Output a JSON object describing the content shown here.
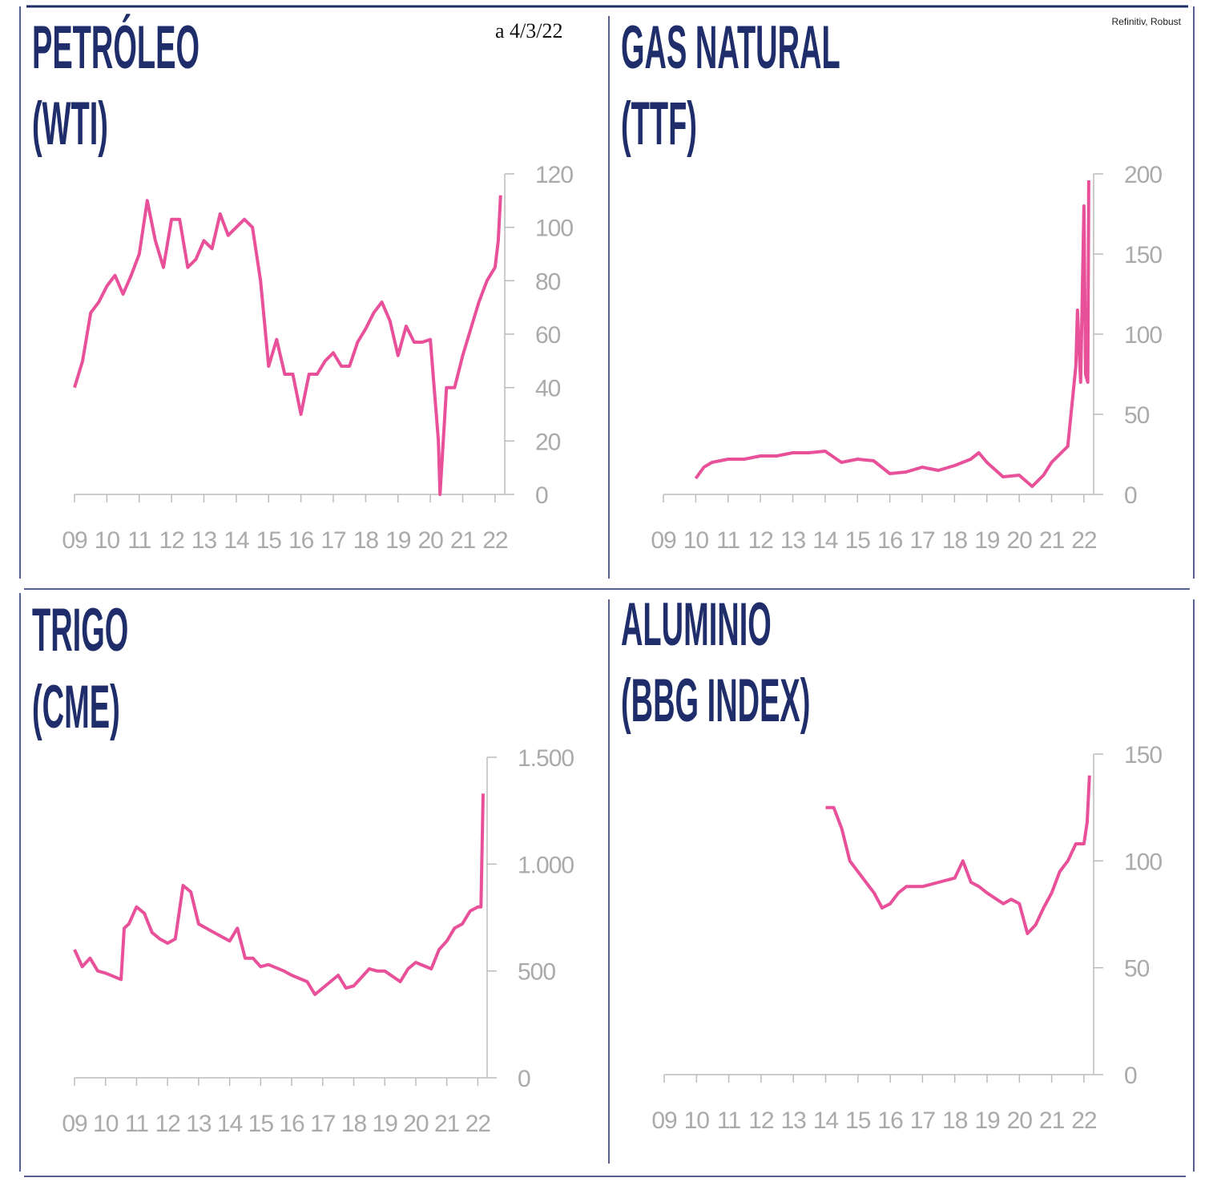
{
  "date_note": "a 4/3/22",
  "source": "Refinitiv, Robust",
  "chart_data": [
    {
      "type": "line",
      "title": "PETRÓLEO",
      "subtitle": "(WTI)",
      "color": "#e8509a",
      "xlim": [
        2009,
        2022.3
      ],
      "ylim": [
        0,
        120
      ],
      "yticks": [
        0,
        20,
        40,
        60,
        80,
        100,
        120
      ],
      "xticks": [
        {
          "value": 2009,
          "label": "09"
        },
        {
          "value": 2010,
          "label": "10"
        },
        {
          "value": 2011,
          "label": "11"
        },
        {
          "value": 2012,
          "label": "12"
        },
        {
          "value": 2013,
          "label": "13"
        },
        {
          "value": 2014,
          "label": "14"
        },
        {
          "value": 2015,
          "label": "15"
        },
        {
          "value": 2016,
          "label": "16"
        },
        {
          "value": 2017,
          "label": "17"
        },
        {
          "value": 2018,
          "label": "18"
        },
        {
          "value": 2019,
          "label": "19"
        },
        {
          "value": 2020,
          "label": "20"
        },
        {
          "value": 2021,
          "label": "21"
        },
        {
          "value": 2022,
          "label": "22"
        }
      ],
      "x": [
        2009,
        2009.25,
        2009.5,
        2009.75,
        2010,
        2010.25,
        2010.5,
        2010.75,
        2011,
        2011.25,
        2011.5,
        2011.75,
        2012,
        2012.25,
        2012.5,
        2012.75,
        2013,
        2013.25,
        2013.5,
        2013.75,
        2014,
        2014.25,
        2014.5,
        2014.75,
        2015,
        2015.25,
        2015.5,
        2015.75,
        2016,
        2016.25,
        2016.5,
        2016.75,
        2017,
        2017.25,
        2017.5,
        2017.75,
        2018,
        2018.25,
        2018.5,
        2018.75,
        2019,
        2019.25,
        2019.5,
        2019.75,
        2020,
        2020.25,
        2020.3,
        2020.5,
        2020.75,
        2021,
        2021.25,
        2021.5,
        2021.75,
        2022,
        2022.1,
        2022.17
      ],
      "values": [
        40,
        50,
        68,
        72,
        78,
        82,
        75,
        82,
        90,
        110,
        95,
        85,
        103,
        103,
        85,
        88,
        95,
        92,
        105,
        97,
        100,
        103,
        100,
        80,
        48,
        58,
        45,
        45,
        30,
        45,
        45,
        50,
        53,
        48,
        48,
        57,
        62,
        68,
        72,
        65,
        52,
        63,
        57,
        57,
        58,
        20,
        0,
        40,
        40,
        52,
        62,
        72,
        80,
        85,
        95,
        112
      ]
    },
    {
      "type": "line",
      "title": "GAS NATURAL",
      "subtitle": "(TTF)",
      "color": "#e8509a",
      "xlim": [
        2009,
        2022.3
      ],
      "ylim": [
        0,
        200
      ],
      "yticks": [
        0,
        50,
        100,
        150,
        200
      ],
      "xticks": [
        {
          "value": 2009,
          "label": "09"
        },
        {
          "value": 2010,
          "label": "10"
        },
        {
          "value": 2011,
          "label": "11"
        },
        {
          "value": 2012,
          "label": "12"
        },
        {
          "value": 2013,
          "label": "13"
        },
        {
          "value": 2014,
          "label": "14"
        },
        {
          "value": 2015,
          "label": "15"
        },
        {
          "value": 2016,
          "label": "16"
        },
        {
          "value": 2017,
          "label": "17"
        },
        {
          "value": 2018,
          "label": "18"
        },
        {
          "value": 2019,
          "label": "19"
        },
        {
          "value": 2020,
          "label": "20"
        },
        {
          "value": 2021,
          "label": "21"
        },
        {
          "value": 2022,
          "label": "22"
        }
      ],
      "x": [
        2010,
        2010.25,
        2010.5,
        2011,
        2011.5,
        2012,
        2012.5,
        2013,
        2013.5,
        2014,
        2014.5,
        2015,
        2015.5,
        2016,
        2016.5,
        2017,
        2017.5,
        2018,
        2018.5,
        2018.75,
        2019,
        2019.5,
        2020,
        2020.4,
        2020.75,
        2021,
        2021.5,
        2021.75,
        2021.8,
        2021.9,
        2022,
        2022.05,
        2022.12,
        2022.15
      ],
      "values": [
        10,
        17,
        20,
        22,
        22,
        24,
        24,
        26,
        26,
        27,
        20,
        22,
        21,
        13,
        14,
        17,
        15,
        18,
        22,
        26,
        20,
        11,
        12,
        5,
        12,
        20,
        30,
        80,
        115,
        70,
        180,
        75,
        70,
        196
      ]
    },
    {
      "type": "line",
      "title": "TRIGO",
      "subtitle": "(CME)",
      "color": "#e8509a",
      "xlim": [
        2009,
        2022.3
      ],
      "ylim": [
        0,
        1500
      ],
      "yticks": [
        0,
        500,
        {
          "value": 1000,
          "label": "1.000"
        },
        {
          "value": 1500,
          "label": "1.500"
        }
      ],
      "xticks": [
        {
          "value": 2009,
          "label": "09"
        },
        {
          "value": 2010,
          "label": "10"
        },
        {
          "value": 2011,
          "label": "11"
        },
        {
          "value": 2012,
          "label": "12"
        },
        {
          "value": 2013,
          "label": "13"
        },
        {
          "value": 2014,
          "label": "14"
        },
        {
          "value": 2015,
          "label": "15"
        },
        {
          "value": 2016,
          "label": "16"
        },
        {
          "value": 2017,
          "label": "17"
        },
        {
          "value": 2018,
          "label": "18"
        },
        {
          "value": 2019,
          "label": "19"
        },
        {
          "value": 2020,
          "label": "20"
        },
        {
          "value": 2021,
          "label": "21"
        },
        {
          "value": 2022,
          "label": "22"
        }
      ],
      "x": [
        2009,
        2009.25,
        2009.5,
        2009.75,
        2010,
        2010.5,
        2010.6,
        2010.75,
        2011,
        2011.25,
        2011.5,
        2011.75,
        2012,
        2012.25,
        2012.5,
        2012.75,
        2013,
        2013.5,
        2014,
        2014.25,
        2014.5,
        2014.75,
        2015,
        2015.25,
        2015.75,
        2016,
        2016.5,
        2016.75,
        2017,
        2017.5,
        2017.75,
        2018,
        2018.5,
        2018.75,
        2019,
        2019.5,
        2019.75,
        2020,
        2020.5,
        2020.75,
        2021,
        2021.25,
        2021.5,
        2021.75,
        2022,
        2022.1,
        2022.17
      ],
      "values": [
        600,
        520,
        560,
        500,
        490,
        460,
        700,
        720,
        800,
        770,
        680,
        650,
        630,
        650,
        900,
        870,
        720,
        680,
        640,
        700,
        560,
        560,
        520,
        530,
        500,
        480,
        450,
        390,
        420,
        480,
        420,
        430,
        510,
        500,
        500,
        450,
        510,
        540,
        510,
        600,
        640,
        700,
        720,
        780,
        800,
        800,
        1330
      ]
    },
    {
      "type": "line",
      "title": "ALUMINIO",
      "subtitle": "(BBG INDEX)",
      "color": "#e8509a",
      "xlim": [
        2009,
        2022.3
      ],
      "ylim": [
        0,
        150
      ],
      "yticks": [
        0,
        50,
        100,
        150
      ],
      "xticks": [
        {
          "value": 2009,
          "label": "09"
        },
        {
          "value": 2010,
          "label": "10"
        },
        {
          "value": 2011,
          "label": "11"
        },
        {
          "value": 2012,
          "label": "12"
        },
        {
          "value": 2013,
          "label": "13"
        },
        {
          "value": 2014,
          "label": "14"
        },
        {
          "value": 2015,
          "label": "15"
        },
        {
          "value": 2016,
          "label": "16"
        },
        {
          "value": 2017,
          "label": "17"
        },
        {
          "value": 2018,
          "label": "18"
        },
        {
          "value": 2019,
          "label": "19"
        },
        {
          "value": 2020,
          "label": "20"
        },
        {
          "value": 2021,
          "label": "21"
        },
        {
          "value": 2022,
          "label": "22"
        }
      ],
      "x": [
        2014,
        2014.25,
        2014.5,
        2014.75,
        2015,
        2015.5,
        2015.75,
        2016,
        2016.25,
        2016.5,
        2017,
        2017.5,
        2018,
        2018.25,
        2018.5,
        2018.75,
        2019,
        2019.5,
        2019.75,
        2020,
        2020.25,
        2020.5,
        2020.75,
        2021,
        2021.25,
        2021.5,
        2021.75,
        2022,
        2022.1,
        2022.17
      ],
      "values": [
        125,
        125,
        115,
        100,
        95,
        85,
        78,
        80,
        85,
        88,
        88,
        90,
        92,
        100,
        90,
        88,
        85,
        80,
        82,
        80,
        66,
        70,
        78,
        85,
        95,
        100,
        108,
        108,
        118,
        140
      ]
    }
  ]
}
